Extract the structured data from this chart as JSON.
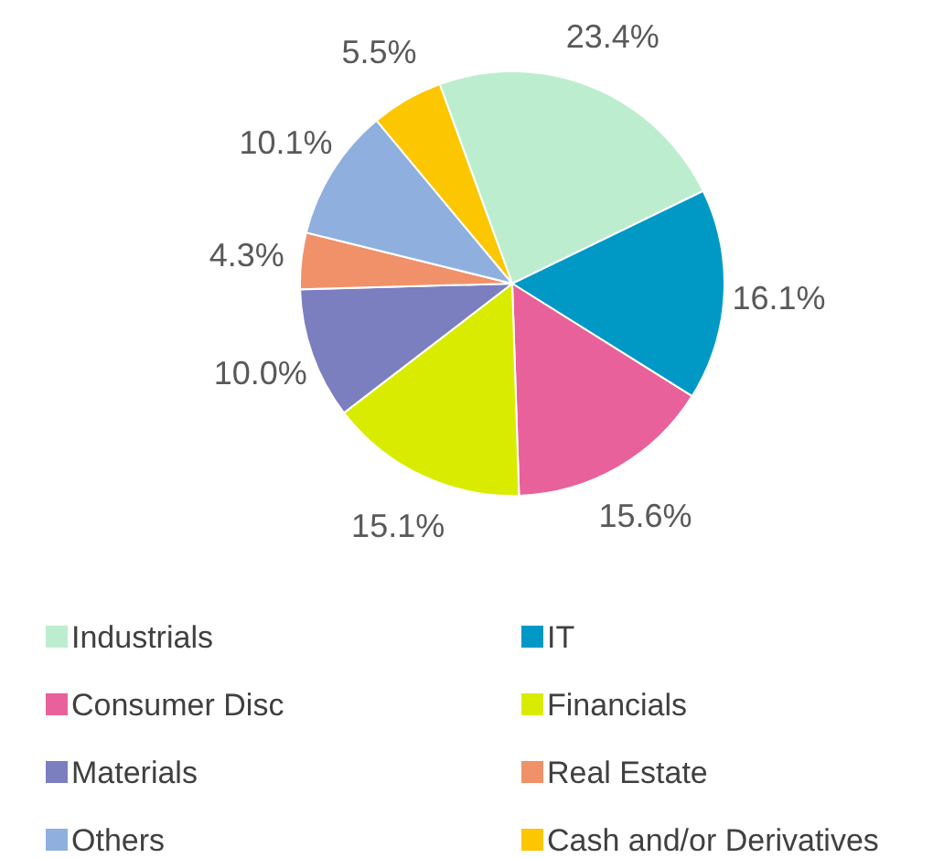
{
  "chart_data": {
    "type": "pie",
    "categories": [
      "Industrials",
      "IT",
      "Consumer Disc",
      "Financials",
      "Materials",
      "Real Estate",
      "Others",
      "Cash and/or Derivatives"
    ],
    "values": [
      23.4,
      16.1,
      15.6,
      15.1,
      10.0,
      4.3,
      10.1,
      5.5
    ],
    "colors": [
      "#bdedcf",
      "#0099c6",
      "#e8619a",
      "#d9ec00",
      "#7b7fc0",
      "#f0916a",
      "#8fb0de",
      "#fcc600"
    ],
    "value_labels": [
      "23.4%",
      "16.1%",
      "15.6%",
      "15.1%",
      "10.0%",
      "4.3%",
      "10.1%",
      "5.5%"
    ],
    "legend": "bottom"
  }
}
